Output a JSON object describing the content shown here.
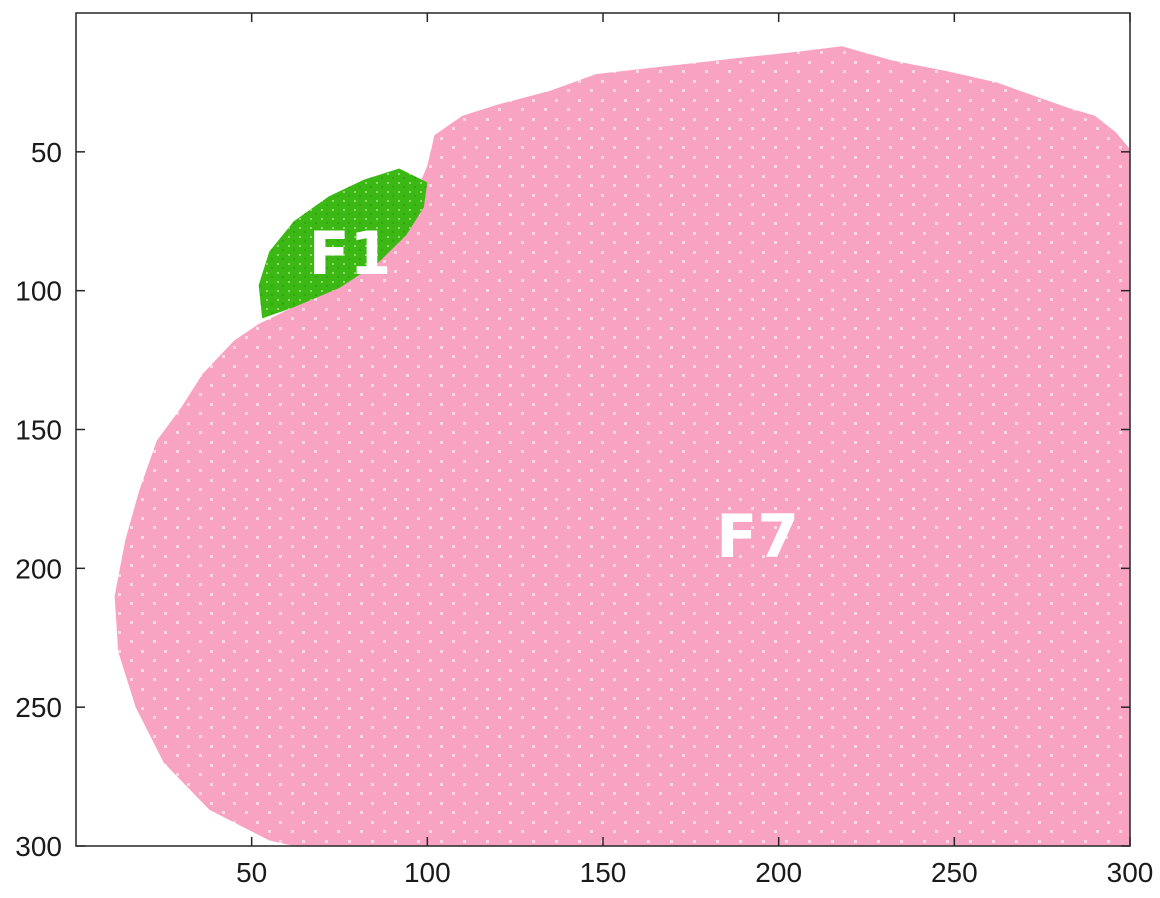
{
  "chart_data": {
    "type": "heatmap",
    "title": "",
    "xlabel": "",
    "ylabel": "",
    "xlim": [
      0,
      300
    ],
    "ylim": [
      0,
      300
    ],
    "y_reversed": true,
    "grid": false,
    "xticks": [
      50,
      100,
      150,
      200,
      250,
      300
    ],
    "yticks": [
      50,
      100,
      150,
      200,
      250,
      300
    ],
    "xtick_labels": [
      "50",
      "100",
      "150",
      "200",
      "250",
      "300"
    ],
    "ytick_labels": [
      "50",
      "100",
      "150",
      "200",
      "250",
      "300"
    ],
    "regions": [
      {
        "label": "F7",
        "color": "#f9a3c3",
        "label_position": [
          194,
          190
        ],
        "boundary": [
          [
            300,
            49
          ],
          [
            296,
            43
          ],
          [
            290,
            37
          ],
          [
            282,
            34
          ],
          [
            262,
            25
          ],
          [
            248,
            21
          ],
          [
            232,
            17
          ],
          [
            218,
            12
          ],
          [
            205,
            14
          ],
          [
            190,
            16
          ],
          [
            176,
            18
          ],
          [
            162,
            20
          ],
          [
            148,
            22
          ],
          [
            135,
            28
          ],
          [
            120,
            33
          ],
          [
            110,
            37
          ],
          [
            102,
            44
          ],
          [
            100,
            55
          ],
          [
            95,
            70
          ],
          [
            90,
            84
          ],
          [
            80,
            95
          ],
          [
            65,
            104
          ],
          [
            52,
            112
          ],
          [
            45,
            118
          ],
          [
            36,
            130
          ],
          [
            30,
            142
          ],
          [
            23,
            154
          ],
          [
            18,
            172
          ],
          [
            14,
            190
          ],
          [
            11,
            210
          ],
          [
            12,
            230
          ],
          [
            17,
            250
          ],
          [
            25,
            270
          ],
          [
            38,
            287
          ],
          [
            55,
            298
          ],
          [
            62,
            300
          ],
          [
            300,
            300
          ]
        ]
      },
      {
        "label": "F1",
        "color": "#3cb814",
        "label_position": [
          78,
          88
        ],
        "boundary": [
          [
            53,
            110
          ],
          [
            52,
            98
          ],
          [
            55,
            86
          ],
          [
            62,
            75
          ],
          [
            72,
            66
          ],
          [
            82,
            60
          ],
          [
            92,
            56
          ],
          [
            100,
            61
          ],
          [
            99,
            70
          ],
          [
            94,
            80
          ],
          [
            86,
            90
          ],
          [
            75,
            99
          ],
          [
            62,
            106
          ]
        ]
      }
    ]
  }
}
